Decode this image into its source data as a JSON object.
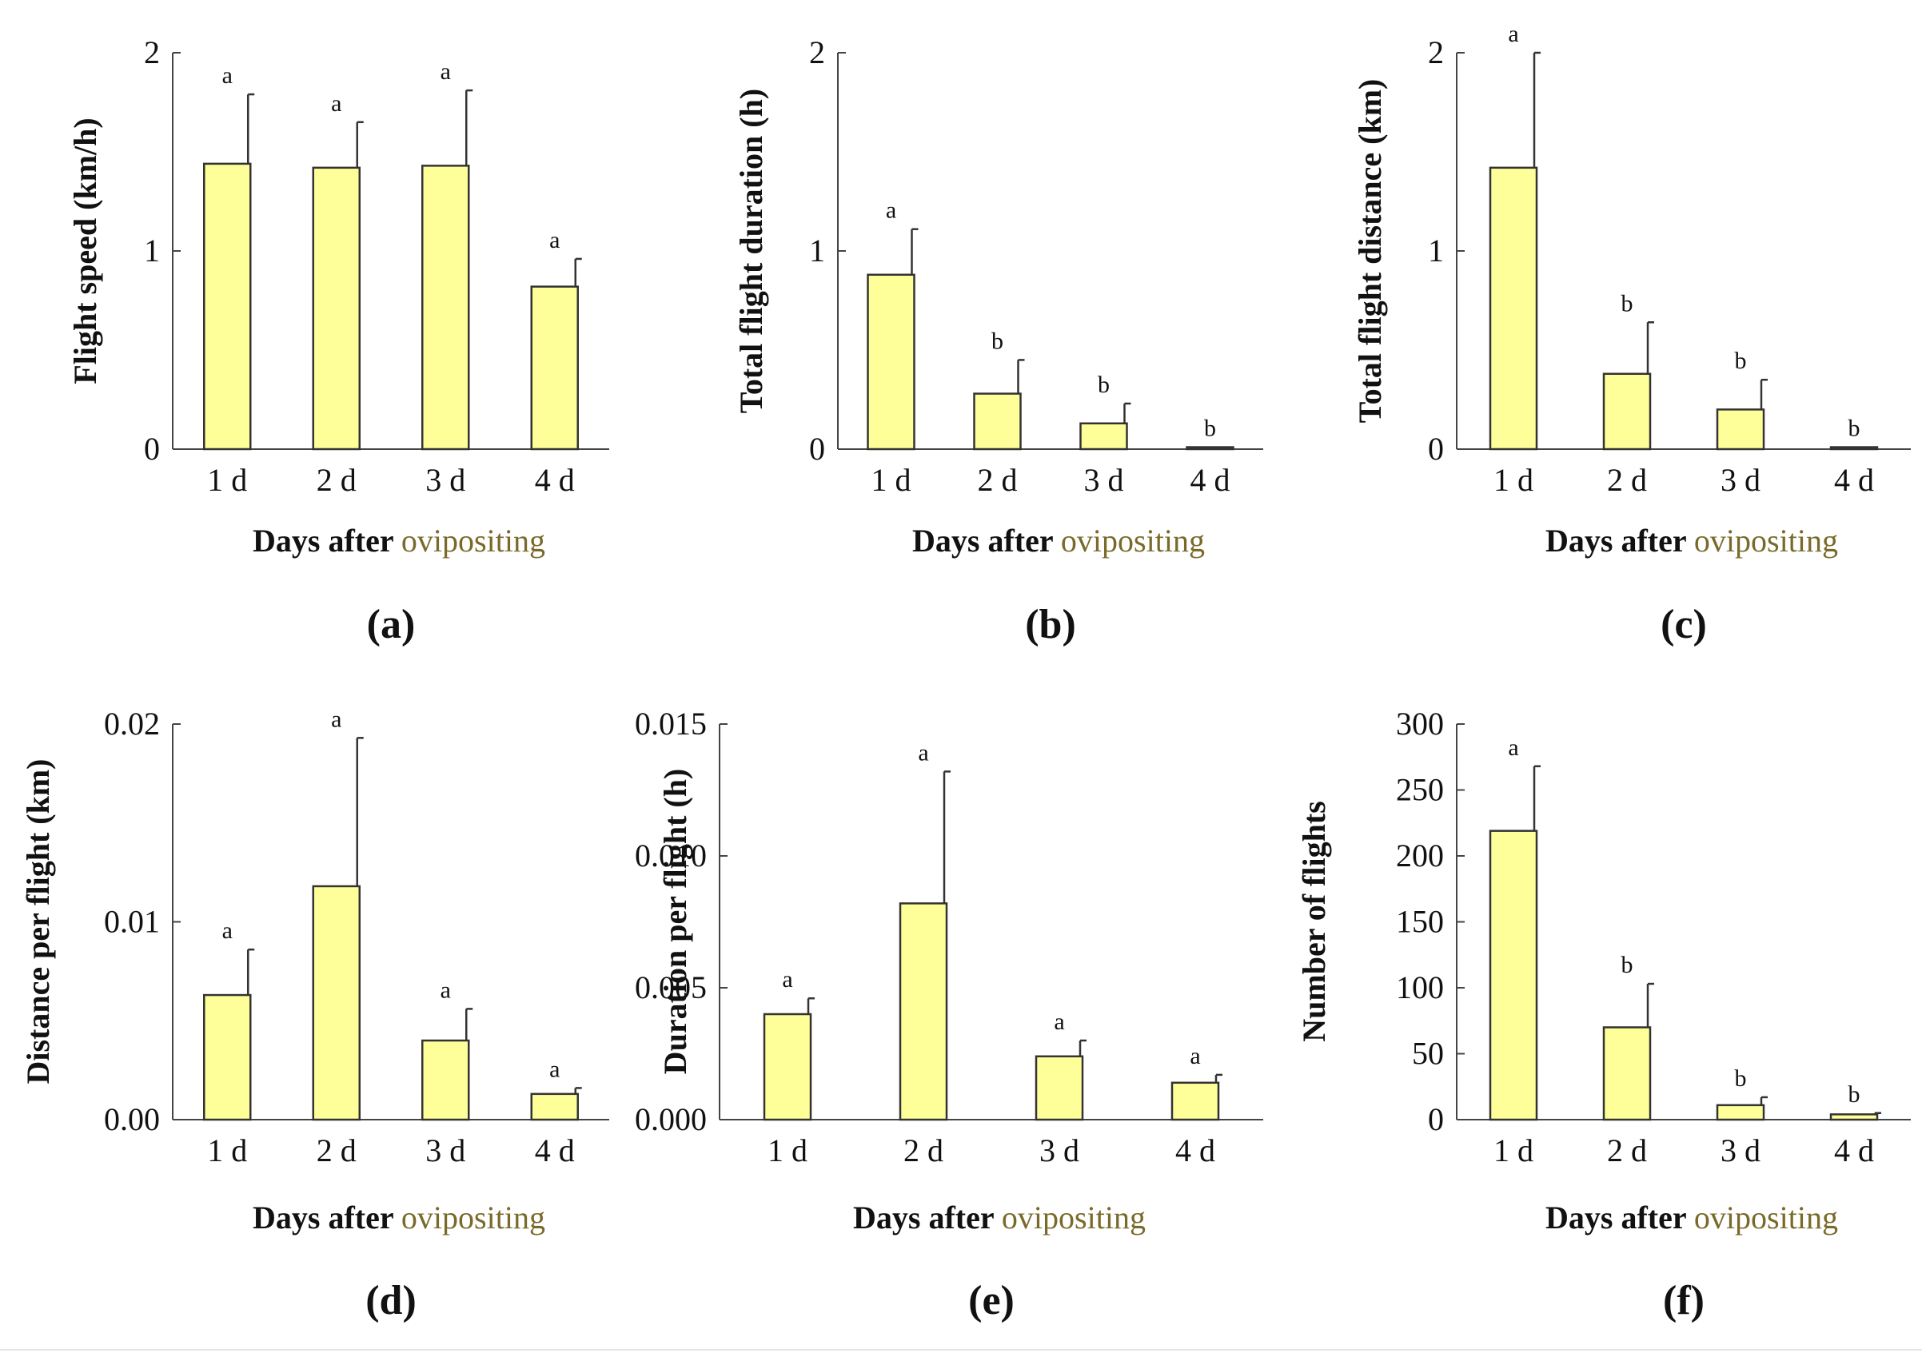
{
  "figure": {
    "bar_color": "#ffff99",
    "bar_edge_color": "#333333",
    "accent_text_color": "#7a6a2a"
  },
  "chart_data": [
    {
      "panel": "(a)",
      "type": "bar",
      "categories": [
        "1 d",
        "2 d",
        "3 d",
        "4 d"
      ],
      "values": [
        1.44,
        1.42,
        1.43,
        0.82
      ],
      "error_upper": [
        1.79,
        1.65,
        1.81,
        0.96
      ],
      "significance": [
        "a",
        "a",
        "a",
        "a"
      ],
      "xlabel_bold": "Days after",
      "xlabel_highlight": "ovipositing",
      "ylabel": "Flight speed (km/h)",
      "ylim": [
        0,
        2
      ],
      "yticks": [
        "0",
        "1",
        "2"
      ],
      "grid": false
    },
    {
      "panel": "(b)",
      "type": "bar",
      "categories": [
        "1 d",
        "2 d",
        "3 d",
        "4 d"
      ],
      "values": [
        0.88,
        0.28,
        0.13,
        0.01
      ],
      "error_upper": [
        1.11,
        0.45,
        0.23,
        0.01
      ],
      "significance": [
        "a",
        "b",
        "b",
        "b"
      ],
      "xlabel_bold": "Days after",
      "xlabel_highlight": "ovipositing",
      "ylabel": "Total flight duration (h)",
      "ylim": [
        0,
        2
      ],
      "yticks": [
        "0",
        "1",
        "2"
      ],
      "grid": false
    },
    {
      "panel": "(c)",
      "type": "bar",
      "categories": [
        "1 d",
        "2 d",
        "3 d",
        "4 d"
      ],
      "values": [
        1.42,
        0.38,
        0.2,
        0.01
      ],
      "error_upper": [
        2.0,
        0.64,
        0.35,
        0.01
      ],
      "significance": [
        "a",
        "b",
        "b",
        "b"
      ],
      "xlabel_bold": "Days after",
      "xlabel_highlight": "ovipositing",
      "ylabel": "Total flight distance (km)",
      "ylim": [
        0,
        2
      ],
      "yticks": [
        "0",
        "1",
        "2"
      ],
      "grid": false
    },
    {
      "panel": "(d)",
      "type": "bar",
      "categories": [
        "1 d",
        "2 d",
        "3 d",
        "4 d"
      ],
      "values": [
        0.0063,
        0.0118,
        0.004,
        0.0013
      ],
      "error_upper": [
        0.0086,
        0.0193,
        0.0056,
        0.0016
      ],
      "significance": [
        "a",
        "a",
        "a",
        "a"
      ],
      "xlabel_bold": "Days after",
      "xlabel_highlight": "ovipositing",
      "ylabel": "Distance per flight (km)",
      "ylim": [
        0,
        0.02
      ],
      "yticks": [
        "0.00",
        "0.01",
        "0.02"
      ],
      "grid": false
    },
    {
      "panel": "(e)",
      "type": "bar",
      "categories": [
        "1 d",
        "2 d",
        "3 d",
        "4 d"
      ],
      "values": [
        0.004,
        0.0082,
        0.0024,
        0.0014
      ],
      "error_upper": [
        0.0046,
        0.0132,
        0.003,
        0.0017
      ],
      "significance": [
        "a",
        "a",
        "a",
        "a"
      ],
      "xlabel_bold": "Days after",
      "xlabel_highlight": "ovipositing",
      "ylabel": "Duration per flight (h)",
      "ylim": [
        0,
        0.015
      ],
      "yticks": [
        "0.000",
        "0.005",
        "0.010",
        "0.015"
      ],
      "grid": false
    },
    {
      "panel": "(f)",
      "type": "bar",
      "categories": [
        "1 d",
        "2 d",
        "3 d",
        "4 d"
      ],
      "values": [
        219,
        70,
        11,
        4
      ],
      "error_upper": [
        268,
        103,
        17,
        5
      ],
      "significance": [
        "a",
        "b",
        "b",
        "b"
      ],
      "xlabel_bold": "Days after",
      "xlabel_highlight": "ovipositing",
      "ylabel": "Number of flights",
      "ylim": [
        0,
        300
      ],
      "yticks": [
        "0",
        "50",
        "100",
        "150",
        "200",
        "250",
        "300"
      ],
      "grid": false
    }
  ]
}
